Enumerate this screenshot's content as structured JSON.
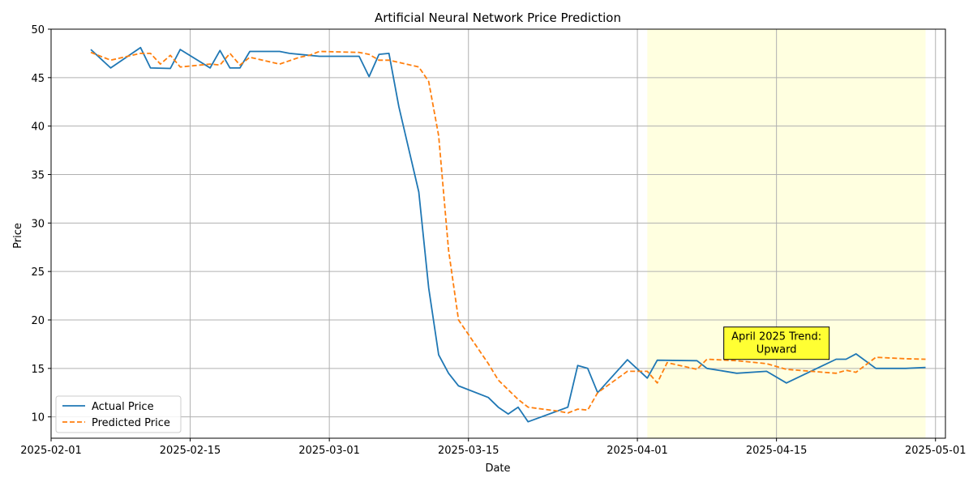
{
  "chart_data": {
    "type": "line",
    "title": "Artificial Neural Network Price Prediction",
    "xlabel": "Date",
    "ylabel": "Price",
    "xlim": [
      "2025-02-01",
      "2025-05-02"
    ],
    "ylim": [
      7.8,
      50
    ],
    "x_ticks": [
      "2025-02-01",
      "2025-02-15",
      "2025-03-01",
      "2025-03-15",
      "2025-04-01",
      "2025-04-15",
      "2025-05-01"
    ],
    "y_ticks": [
      10,
      15,
      20,
      25,
      30,
      35,
      40,
      45,
      50
    ],
    "grid": true,
    "legend_position": "lower-left",
    "highlight_span": {
      "start": "2025-04-02",
      "end": "2025-04-30",
      "color": "#ffffe0"
    },
    "annotation": {
      "text": "April 2025 Trend:\nUpward",
      "date": "2025-04-15",
      "value": 17.6,
      "bg": "#ffff33"
    },
    "series": [
      {
        "name": "Actual Price",
        "color": "#1f77b4",
        "dash": "solid",
        "points": [
          [
            "2025-02-05",
            47.9
          ],
          [
            "2025-02-07",
            46.0
          ],
          [
            "2025-02-10",
            48.1
          ],
          [
            "2025-02-11",
            46.0
          ],
          [
            "2025-02-13",
            45.95
          ],
          [
            "2025-02-14",
            47.9
          ],
          [
            "2025-02-17",
            46.0
          ],
          [
            "2025-02-18",
            47.8
          ],
          [
            "2025-02-19",
            46.0
          ],
          [
            "2025-02-20",
            46.0
          ],
          [
            "2025-02-21",
            47.7
          ],
          [
            "2025-02-24",
            47.7
          ],
          [
            "2025-02-25",
            47.5
          ],
          [
            "2025-02-27",
            47.3
          ],
          [
            "2025-02-28",
            47.2
          ],
          [
            "2025-03-04",
            47.2
          ],
          [
            "2025-03-05",
            45.1
          ],
          [
            "2025-03-06",
            47.4
          ],
          [
            "2025-03-07",
            47.5
          ],
          [
            "2025-03-08",
            42.0
          ],
          [
            "2025-03-10",
            33.2
          ],
          [
            "2025-03-11",
            23.3
          ],
          [
            "2025-03-12",
            16.4
          ],
          [
            "2025-03-13",
            14.5
          ],
          [
            "2025-03-14",
            13.2
          ],
          [
            "2025-03-17",
            12.0
          ],
          [
            "2025-03-18",
            11.0
          ],
          [
            "2025-03-19",
            10.3
          ],
          [
            "2025-03-20",
            11.0
          ],
          [
            "2025-03-21",
            9.5
          ],
          [
            "2025-03-25",
            11.0
          ],
          [
            "2025-03-26",
            15.3
          ],
          [
            "2025-03-27",
            15.0
          ],
          [
            "2025-03-28",
            12.5
          ],
          [
            "2025-03-31",
            15.9
          ],
          [
            "2025-04-02",
            14.0
          ],
          [
            "2025-04-03",
            15.85
          ],
          [
            "2025-04-07",
            15.8
          ],
          [
            "2025-04-08",
            15.0
          ],
          [
            "2025-04-11",
            14.5
          ],
          [
            "2025-04-14",
            14.7
          ],
          [
            "2025-04-16",
            13.5
          ],
          [
            "2025-04-21",
            15.95
          ],
          [
            "2025-04-22",
            15.95
          ],
          [
            "2025-04-23",
            16.5
          ],
          [
            "2025-04-25",
            15.0
          ],
          [
            "2025-04-28",
            15.0
          ],
          [
            "2025-04-30",
            15.1
          ]
        ]
      },
      {
        "name": "Predicted Price",
        "color": "#ff7f0e",
        "dash": "dashed",
        "points": [
          [
            "2025-02-05",
            47.6
          ],
          [
            "2025-02-07",
            46.8
          ],
          [
            "2025-02-10",
            47.5
          ],
          [
            "2025-02-11",
            47.5
          ],
          [
            "2025-02-12",
            46.4
          ],
          [
            "2025-02-13",
            47.3
          ],
          [
            "2025-02-14",
            46.1
          ],
          [
            "2025-02-17",
            46.4
          ],
          [
            "2025-02-18",
            46.3
          ],
          [
            "2025-02-19",
            47.5
          ],
          [
            "2025-02-20",
            46.3
          ],
          [
            "2025-02-21",
            47.1
          ],
          [
            "2025-02-24",
            46.4
          ],
          [
            "2025-02-26",
            47.1
          ],
          [
            "2025-02-27",
            47.3
          ],
          [
            "2025-02-28",
            47.7
          ],
          [
            "2025-03-04",
            47.6
          ],
          [
            "2025-03-05",
            47.4
          ],
          [
            "2025-03-06",
            46.8
          ],
          [
            "2025-03-07",
            46.8
          ],
          [
            "2025-03-10",
            46.1
          ],
          [
            "2025-03-11",
            44.6
          ],
          [
            "2025-03-12",
            39.0
          ],
          [
            "2025-03-13",
            27.2
          ],
          [
            "2025-03-14",
            20.0
          ],
          [
            "2025-03-17",
            15.5
          ],
          [
            "2025-03-18",
            13.8
          ],
          [
            "2025-03-20",
            11.8
          ],
          [
            "2025-03-21",
            11.0
          ],
          [
            "2025-03-24",
            10.6
          ],
          [
            "2025-03-25",
            10.4
          ],
          [
            "2025-03-26",
            10.8
          ],
          [
            "2025-03-27",
            10.7
          ],
          [
            "2025-03-28",
            12.5
          ],
          [
            "2025-03-31",
            14.7
          ],
          [
            "2025-04-02",
            14.7
          ],
          [
            "2025-04-03",
            13.5
          ],
          [
            "2025-04-04",
            15.6
          ],
          [
            "2025-04-07",
            14.9
          ],
          [
            "2025-04-08",
            15.95
          ],
          [
            "2025-04-11",
            15.8
          ],
          [
            "2025-04-14",
            15.5
          ],
          [
            "2025-04-16",
            14.9
          ],
          [
            "2025-04-21",
            14.5
          ],
          [
            "2025-04-22",
            14.8
          ],
          [
            "2025-04-23",
            14.6
          ],
          [
            "2025-04-25",
            16.15
          ],
          [
            "2025-04-28",
            16.0
          ],
          [
            "2025-04-30",
            15.95
          ]
        ]
      }
    ]
  }
}
